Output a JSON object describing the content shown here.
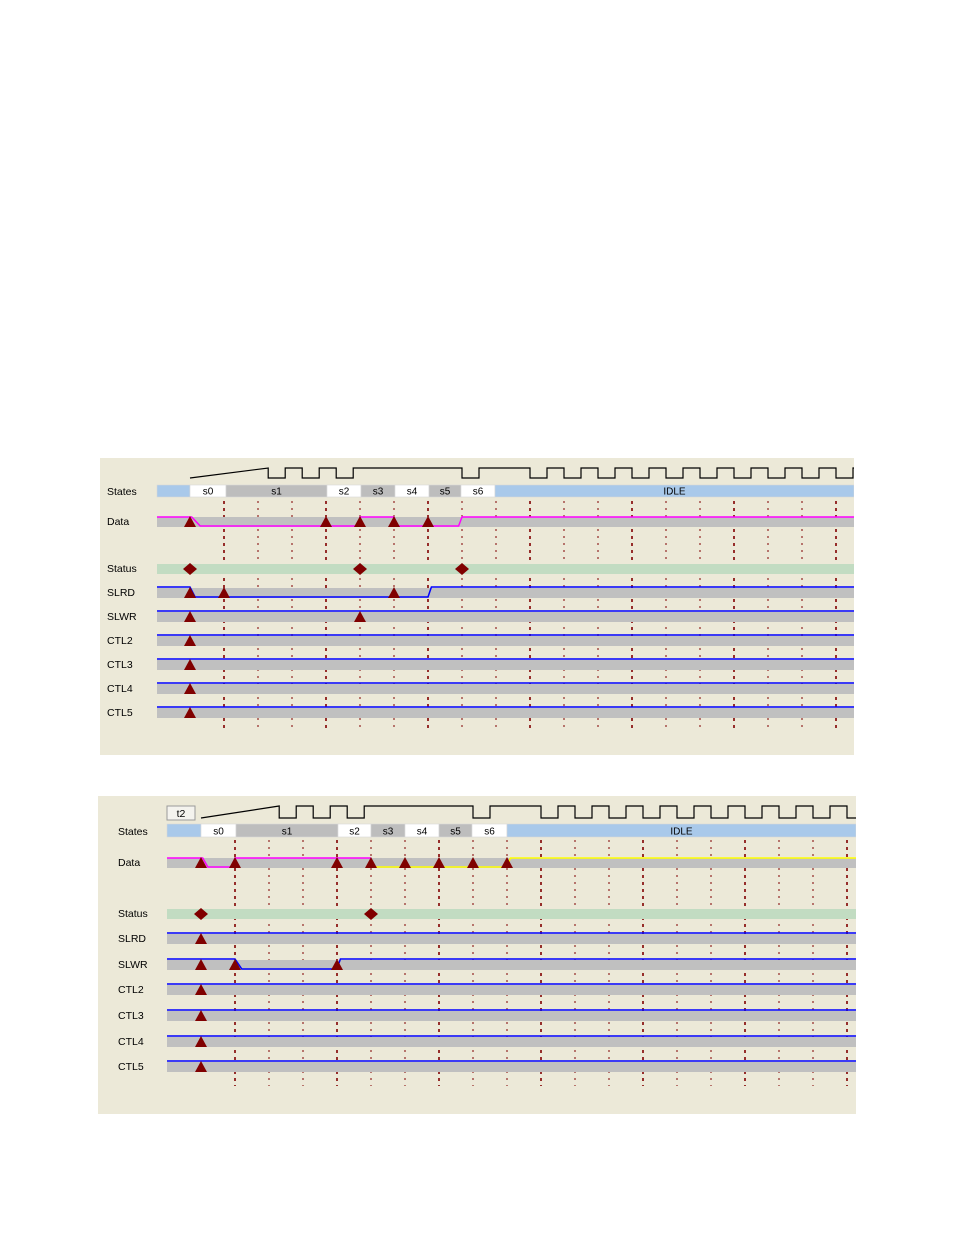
{
  "palette": {
    "panel_bg": "#ece9d8",
    "state_blue": "#a9c9ea",
    "state_gray": "#bdbdbd",
    "state_white": "#ffffff",
    "track_gray": "#c0c0c0",
    "status_green": "#c2dcc2",
    "signal_blue": "#0000ff",
    "data_magenta": "#ff00ff",
    "data_yellow": "#ffff00",
    "marker": "#800000",
    "gridline": "#800000"
  },
  "icons": {
    "edge_marker": "dark-red-triangle",
    "status_marker": "dark-red-diamond"
  },
  "timing_diagrams": [
    {
      "tag": "",
      "signal_labels": [
        "States",
        "Data",
        "Status",
        "SLRD",
        "SLWR",
        "CTL2",
        "CTL3",
        "CTL4",
        "CTL5"
      ],
      "state_cells": [
        {
          "label": "",
          "kind": "blue"
        },
        {
          "label": "s0",
          "kind": "white"
        },
        {
          "label": "s1",
          "kind": "gray"
        },
        {
          "label": "s2",
          "kind": "white"
        },
        {
          "label": "s3",
          "kind": "gray"
        },
        {
          "label": "s4",
          "kind": "white"
        },
        {
          "label": "s5",
          "kind": "gray"
        },
        {
          "label": "s6",
          "kind": "white"
        },
        {
          "label": "IDLE",
          "kind": "blue"
        }
      ],
      "data_color": "magenta",
      "markers": {
        "data": [
          1,
          5,
          6,
          7,
          8
        ],
        "status": [
          1,
          6,
          9
        ],
        "slrd": [
          1,
          2,
          7
        ],
        "slwr": [
          1,
          6
        ],
        "ctl2": [
          1
        ],
        "ctl3": [
          1
        ],
        "ctl4": [
          1
        ],
        "ctl5": [
          1
        ]
      }
    },
    {
      "tag": "t2",
      "signal_labels": [
        "States",
        "Data",
        "Status",
        "SLRD",
        "SLWR",
        "CTL2",
        "CTL3",
        "CTL4",
        "CTL5"
      ],
      "state_cells": [
        {
          "label": "",
          "kind": "blue"
        },
        {
          "label": "s0",
          "kind": "white"
        },
        {
          "label": "s1",
          "kind": "gray"
        },
        {
          "label": "s2",
          "kind": "white"
        },
        {
          "label": "s3",
          "kind": "gray"
        },
        {
          "label": "s4",
          "kind": "white"
        },
        {
          "label": "s5",
          "kind": "gray"
        },
        {
          "label": "s6",
          "kind": "white"
        },
        {
          "label": "IDLE",
          "kind": "blue"
        }
      ],
      "data_color": "magenta-then-yellow",
      "markers": {
        "data": [
          1,
          2,
          5,
          6,
          7,
          8,
          9,
          10
        ],
        "status": [
          1,
          6
        ],
        "slrd": [
          1
        ],
        "slwr": [
          1,
          2,
          5
        ],
        "ctl2": [
          1
        ],
        "ctl3": [
          1
        ],
        "ctl4": [
          1
        ],
        "ctl5": [
          1
        ]
      }
    }
  ]
}
